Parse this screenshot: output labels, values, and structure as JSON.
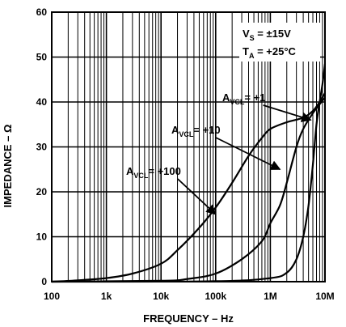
{
  "chart_data": {
    "type": "line",
    "title": "",
    "xlabel": "FREQUENCY – Hz",
    "ylabel": "IMPEDANCE – Ω",
    "x_scale": "log",
    "xlim": [
      100,
      10000000
    ],
    "ylim": [
      0,
      60
    ],
    "grid": true,
    "x_ticks": [
      {
        "value": 100,
        "label": "100"
      },
      {
        "value": 1000,
        "label": "1k"
      },
      {
        "value": 10000,
        "label": "10k"
      },
      {
        "value": 100000,
        "label": "100k"
      },
      {
        "value": 1000000,
        "label": "1M"
      },
      {
        "value": 10000000,
        "label": "10M"
      }
    ],
    "y_ticks": [
      0,
      10,
      20,
      30,
      40,
      50,
      60
    ],
    "conditions": [
      {
        "main": "V",
        "sub": "S",
        "rest": " = ±15V"
      },
      {
        "main": "T",
        "sub": "A",
        "rest": " = +25°C"
      }
    ],
    "series": [
      {
        "name_main": "A",
        "name_sub": "VCL",
        "name_rest": "= +100",
        "label_at": [
          100000,
          15
        ],
        "points": [
          [
            100,
            0
          ],
          [
            300,
            0.3
          ],
          [
            1000,
            0.8
          ],
          [
            3000,
            1.8
          ],
          [
            10000,
            4
          ],
          [
            20000,
            7
          ],
          [
            50000,
            12
          ],
          [
            100000,
            16.5
          ],
          [
            200000,
            22
          ],
          [
            400000,
            28
          ],
          [
            700000,
            32
          ],
          [
            1000000,
            34
          ],
          [
            2000000,
            35.5
          ],
          [
            4000000,
            36.5
          ],
          [
            6000000,
            38
          ],
          [
            8000000,
            40
          ],
          [
            10000000,
            42
          ]
        ]
      },
      {
        "name_main": "A",
        "name_sub": "VCL",
        "name_rest": "= +10",
        "label_at": [
          1500000,
          25
        ],
        "points": [
          [
            100,
            0
          ],
          [
            10000,
            0.2
          ],
          [
            30000,
            0.6
          ],
          [
            100000,
            1.8
          ],
          [
            300000,
            5
          ],
          [
            700000,
            9
          ],
          [
            1000000,
            13
          ],
          [
            1500000,
            17
          ],
          [
            2000000,
            22
          ],
          [
            3000000,
            30
          ],
          [
            4000000,
            34
          ],
          [
            6000000,
            37.5
          ],
          [
            8000000,
            39.5
          ],
          [
            10000000,
            41
          ]
        ]
      },
      {
        "name_main": "A",
        "name_sub": "VCL",
        "name_rest": "= +1",
        "label_at": [
          5500000,
          36
        ],
        "points": [
          [
            100,
            0
          ],
          [
            100000,
            0.1
          ],
          [
            1000000,
            0.8
          ],
          [
            2000000,
            2
          ],
          [
            3000000,
            5
          ],
          [
            4000000,
            10
          ],
          [
            5000000,
            17
          ],
          [
            6000000,
            26
          ],
          [
            7000000,
            35
          ],
          [
            8000000,
            40
          ],
          [
            9000000,
            44
          ],
          [
            10000000,
            48.5
          ]
        ]
      }
    ]
  }
}
